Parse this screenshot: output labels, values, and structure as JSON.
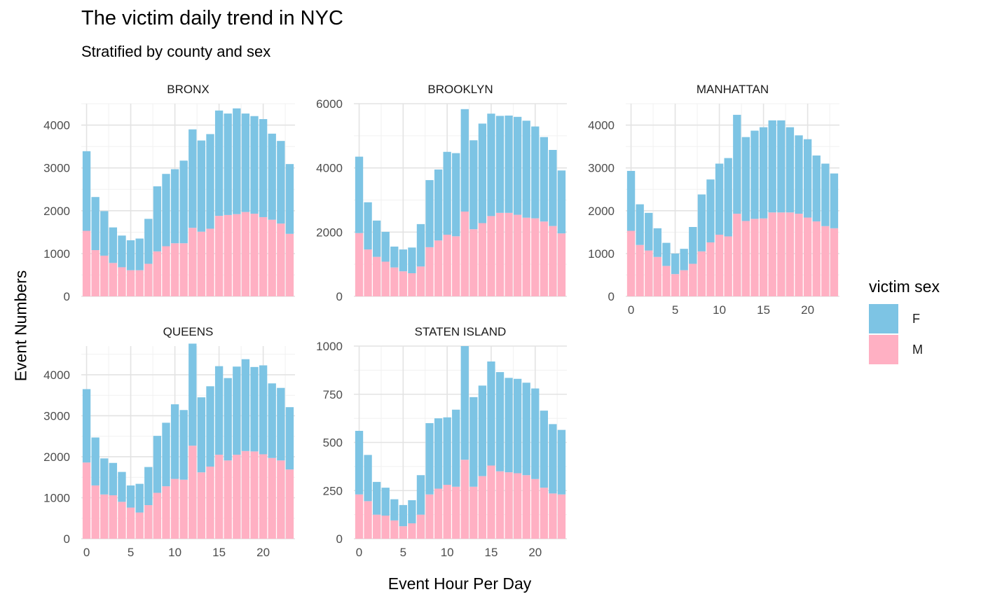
{
  "title": "The victim daily trend in NYC",
  "subtitle": "Stratified by county and sex",
  "xlabel": "Event Hour Per Day",
  "ylabel": "Event Numbers",
  "legend": {
    "title": "victim sex",
    "items": [
      {
        "label": "F",
        "color": "#7DC4E4"
      },
      {
        "label": "M",
        "color": "#FFB0C3"
      }
    ]
  },
  "chart_data": {
    "type": "bar",
    "stacked": true,
    "faceted": true,
    "x": [
      0,
      1,
      2,
      3,
      4,
      5,
      6,
      7,
      8,
      9,
      10,
      11,
      12,
      13,
      14,
      15,
      16,
      17,
      18,
      19,
      20,
      21,
      22,
      23
    ],
    "x_ticks": [
      0,
      5,
      10,
      15,
      20
    ],
    "grid": true,
    "legend_position": "right",
    "panels": [
      {
        "name": "BRONX",
        "ylim": [
          0,
          4500
        ],
        "y_ticks": [
          0,
          1000,
          2000,
          3000,
          4000
        ],
        "series": [
          {
            "name": "M",
            "values": [
              1530,
              1080,
              950,
              780,
              680,
              610,
              610,
              760,
              1050,
              1170,
              1240,
              1240,
              1600,
              1510,
              1580,
              1880,
              1900,
              1920,
              1970,
              1930,
              1850,
              1790,
              1700,
              1460
            ]
          },
          {
            "name": "F",
            "values": [
              1860,
              1240,
              1040,
              830,
              740,
              700,
              740,
              1050,
              1520,
              1690,
              1730,
              1930,
              2300,
              2130,
              2210,
              2460,
              2370,
              2470,
              2300,
              2280,
              2290,
              2010,
              1930,
              1630
            ]
          }
        ]
      },
      {
        "name": "BROOKLYN",
        "ylim": [
          0,
          6000
        ],
        "y_ticks": [
          0,
          2000,
          4000,
          6000
        ],
        "series": [
          {
            "name": "M",
            "values": [
              1970,
              1460,
              1230,
              1080,
              900,
              780,
              720,
              930,
              1530,
              1740,
              1920,
              1870,
              2640,
              2090,
              2280,
              2500,
              2600,
              2600,
              2540,
              2450,
              2430,
              2330,
              2190,
              1960
            ]
          },
          {
            "name": "F",
            "values": [
              2380,
              1470,
              1130,
              930,
              650,
              680,
              800,
              1320,
              2090,
              2210,
              2580,
              2590,
              3190,
              2770,
              3100,
              3190,
              3020,
              3030,
              3050,
              3020,
              2860,
              2630,
              2370,
              1960
            ]
          }
        ]
      },
      {
        "name": "MANHATTAN",
        "ylim": [
          0,
          4500
        ],
        "y_ticks": [
          0,
          1000,
          2000,
          3000,
          4000
        ],
        "series": [
          {
            "name": "M",
            "values": [
              1530,
              1200,
              1070,
              920,
              710,
              520,
              610,
              760,
              1050,
              1260,
              1440,
              1400,
              1930,
              1760,
              1810,
              1820,
              1960,
              1960,
              1960,
              1930,
              1840,
              1750,
              1640,
              1590
            ]
          },
          {
            "name": "F",
            "values": [
              1400,
              950,
              880,
              670,
              540,
              480,
              500,
              860,
              1330,
              1470,
              1660,
              1830,
              2310,
              1960,
              2060,
              2130,
              2150,
              2150,
              1990,
              1830,
              1830,
              1540,
              1460,
              1280
            ]
          }
        ]
      },
      {
        "name": "QUEENS",
        "ylim": [
          0,
          4700
        ],
        "y_ticks": [
          0,
          1000,
          2000,
          3000,
          4000
        ],
        "series": [
          {
            "name": "M",
            "values": [
              1860,
              1300,
              1080,
              1060,
              900,
              760,
              640,
              820,
              1120,
              1280,
              1460,
              1440,
              2270,
              1620,
              1760,
              2050,
              1910,
              2050,
              2140,
              2130,
              2060,
              1970,
              1910,
              1690
            ]
          },
          {
            "name": "F",
            "values": [
              1790,
              1170,
              880,
              790,
              730,
              540,
              700,
              930,
              1390,
              1550,
              1820,
              1700,
              2490,
              1830,
              1960,
              2160,
              2010,
              2150,
              2240,
              2060,
              2170,
              1820,
              1770,
              1520
            ]
          }
        ]
      },
      {
        "name": "STATEN ISLAND",
        "ylim": [
          0,
          1000
        ],
        "y_ticks": [
          0,
          250,
          500,
          750,
          1000
        ],
        "series": [
          {
            "name": "M",
            "values": [
              230,
              195,
              125,
              120,
              95,
              65,
              80,
              125,
              230,
              260,
              280,
              270,
              410,
              270,
              325,
              380,
              350,
              345,
              340,
              330,
              310,
              265,
              235,
              230
            ]
          },
          {
            "name": "F",
            "values": [
              330,
              240,
              170,
              145,
              110,
              110,
              120,
              205,
              370,
              365,
              350,
              400,
              590,
              465,
              470,
              540,
              515,
              490,
              490,
              480,
              470,
              400,
              360,
              335
            ]
          }
        ]
      }
    ]
  }
}
